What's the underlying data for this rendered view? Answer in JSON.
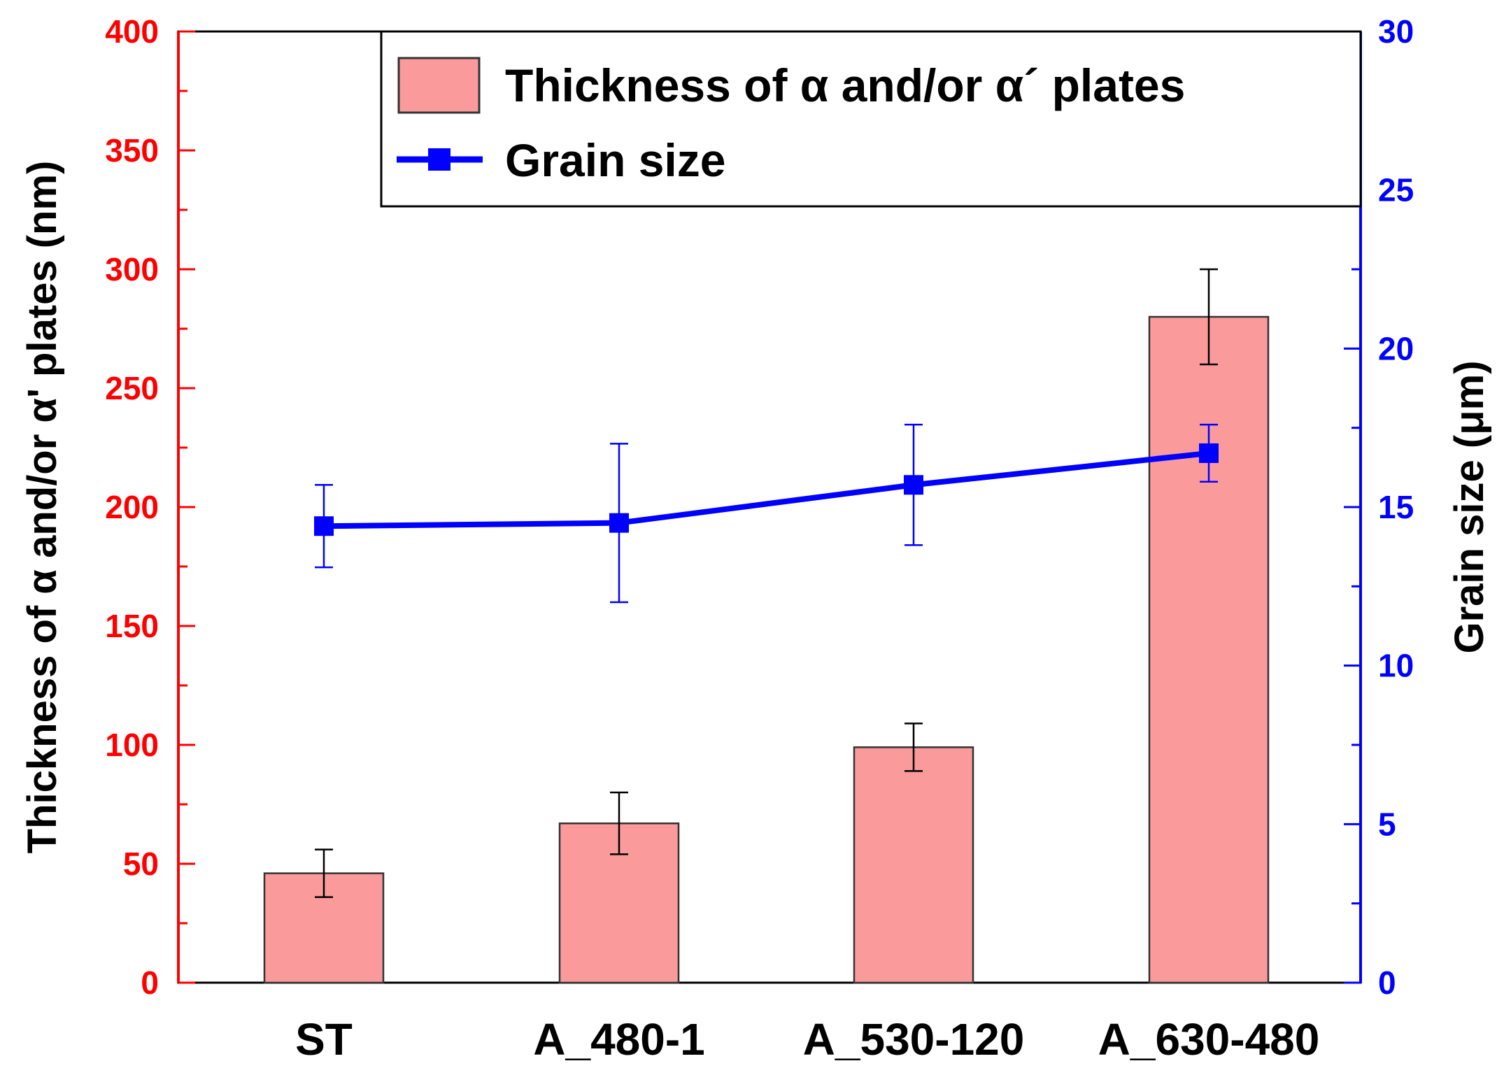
{
  "chart_data": {
    "type": "bar",
    "categories": [
      "ST",
      "A_480-1",
      "A_530-120",
      "A_630-480"
    ],
    "series": [
      {
        "name": "Thickness of α and/or α´ plates",
        "kind": "bar",
        "axis": "left",
        "values": [
          46,
          67,
          99,
          280
        ],
        "errors": [
          10,
          13,
          10,
          20
        ],
        "color": "#fa9a9a"
      },
      {
        "name": "Grain size",
        "kind": "line",
        "axis": "right",
        "values": [
          14.4,
          14.5,
          15.7,
          16.7
        ],
        "errors": [
          1.3,
          2.5,
          1.9,
          0.9
        ],
        "color": "#0000ff"
      }
    ],
    "ylabel": "Thickness of α and/or α' plates (nm)",
    "y2label": "Grain size (μm)",
    "ylim": [
      0,
      400
    ],
    "y2lim": [
      0,
      30
    ],
    "yticks": [
      "0",
      "50",
      "100",
      "150",
      "200",
      "250",
      "300",
      "350",
      "400"
    ],
    "y2ticks": [
      "0",
      "5",
      "10",
      "15",
      "20",
      "25",
      "30"
    ],
    "left_axis_color": "#ff0000",
    "right_axis_color": "#0000ff",
    "legend_position": "top"
  }
}
